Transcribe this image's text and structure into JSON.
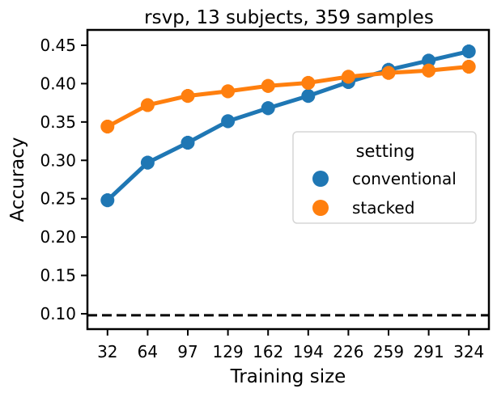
{
  "chart_data": {
    "type": "line",
    "title": "rsvp, 13 subjects, 359 samples",
    "xlabel": "Training size",
    "ylabel": "Accuracy",
    "categories": [
      "32",
      "64",
      "97",
      "129",
      "162",
      "194",
      "226",
      "259",
      "291",
      "324"
    ],
    "yticks": [
      "0.10",
      "0.15",
      "0.20",
      "0.25",
      "0.30",
      "0.35",
      "0.40",
      "0.45"
    ],
    "ylim": [
      0.08,
      0.47
    ],
    "series": [
      {
        "name": "conventional",
        "color": "#1f77b4",
        "values": [
          0.248,
          0.297,
          0.323,
          0.351,
          0.368,
          0.384,
          0.402,
          0.418,
          0.43,
          0.442
        ],
        "err": [
          0.009,
          0.009,
          0.009,
          0.009,
          0.009,
          0.009,
          0.009,
          0.009,
          0.009,
          0.009
        ]
      },
      {
        "name": "stacked",
        "color": "#ff7f0e",
        "values": [
          0.344,
          0.372,
          0.384,
          0.39,
          0.397,
          0.401,
          0.409,
          0.414,
          0.417,
          0.422
        ],
        "err": [
          0.009,
          0.009,
          0.009,
          0.009,
          0.009,
          0.009,
          0.009,
          0.009,
          0.009,
          0.009
        ]
      }
    ],
    "chance_level": 0.098,
    "legend": {
      "title": "setting",
      "position": "center-right"
    },
    "grid": false
  }
}
